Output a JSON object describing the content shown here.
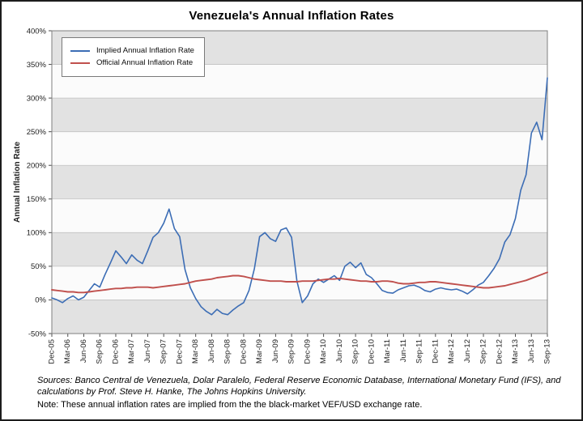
{
  "chart_data": {
    "type": "line",
    "title": "Venezuela's Annual Inflation Rates",
    "xlabel": "",
    "ylabel": "Annual Inflation Rate",
    "ylim": [
      -50,
      400
    ],
    "y_tick_step": 50,
    "y_tick_suffix": "%",
    "grid": true,
    "legend_position": "top-left",
    "style": {
      "band_dark": "#e2e2e2",
      "band_light": "#fbfbfb",
      "grid": "#c2c2c2",
      "plot_border": "#7f7f7f",
      "axis": "#4d4d4d"
    },
    "categories": [
      "Dec-05",
      "Jan-06",
      "Feb-06",
      "Mar-06",
      "Apr-06",
      "May-06",
      "Jun-06",
      "Jul-06",
      "Aug-06",
      "Sep-06",
      "Oct-06",
      "Nov-06",
      "Dec-06",
      "Jan-07",
      "Feb-07",
      "Mar-07",
      "Apr-07",
      "May-07",
      "Jun-07",
      "Jul-07",
      "Aug-07",
      "Sep-07",
      "Oct-07",
      "Nov-07",
      "Dec-07",
      "Jan-08",
      "Feb-08",
      "Mar-08",
      "Apr-08",
      "May-08",
      "Jun-08",
      "Jul-08",
      "Aug-08",
      "Sep-08",
      "Oct-08",
      "Nov-08",
      "Dec-08",
      "Jan-09",
      "Feb-09",
      "Mar-09",
      "Apr-09",
      "May-09",
      "Jun-09",
      "Jul-09",
      "Aug-09",
      "Sep-09",
      "Oct-09",
      "Nov-09",
      "Dec-09",
      "Jan-10",
      "Feb-10",
      "Mar-10",
      "Apr-10",
      "May-10",
      "Jun-10",
      "Jul-10",
      "Aug-10",
      "Sep-10",
      "Oct-10",
      "Nov-10",
      "Dec-10",
      "Jan-11",
      "Feb-11",
      "Mar-11",
      "Apr-11",
      "May-11",
      "Jun-11",
      "Jul-11",
      "Aug-11",
      "Sep-11",
      "Oct-11",
      "Nov-11",
      "Dec-11",
      "Jan-12",
      "Feb-12",
      "Mar-12",
      "Apr-12",
      "May-12",
      "Jun-12",
      "Jul-12",
      "Aug-12",
      "Sep-12",
      "Oct-12",
      "Nov-12",
      "Dec-12",
      "Jan-13",
      "Feb-13",
      "Mar-13",
      "Apr-13",
      "May-13",
      "Jun-13",
      "Jul-13",
      "Aug-13",
      "Sep-13"
    ],
    "x_tick_every": 3,
    "series": [
      {
        "name": "Implied Annual Inflation Rate",
        "color": "#3c6db5",
        "values": [
          3,
          0,
          -4,
          2,
          6,
          0,
          4,
          14,
          24,
          19,
          38,
          55,
          73,
          64,
          54,
          67,
          59,
          54,
          73,
          93,
          100,
          114,
          135,
          106,
          94,
          45,
          18,
          2,
          -10,
          -17,
          -22,
          -14,
          -20,
          -22,
          -15,
          -9,
          -4,
          14,
          46,
          94,
          100,
          91,
          87,
          104,
          107,
          93,
          28,
          -4,
          6,
          24,
          31,
          26,
          31,
          36,
          29,
          50,
          56,
          48,
          55,
          38,
          33,
          24,
          14,
          11,
          10,
          15,
          18,
          21,
          22,
          19,
          14,
          12,
          16,
          18,
          16,
          15,
          16,
          13,
          9,
          15,
          22,
          26,
          36,
          47,
          61,
          86,
          97,
          121,
          163,
          186,
          248,
          264,
          238,
          330
        ]
      },
      {
        "name": "Official Annual Inflation Rate",
        "color": "#c0504d",
        "values": [
          15,
          14,
          13,
          12,
          12,
          11,
          11,
          12,
          13,
          14,
          15,
          16,
          17,
          17,
          18,
          18,
          19,
          19,
          19,
          18,
          19,
          20,
          21,
          22,
          23,
          24,
          26,
          28,
          29,
          30,
          31,
          33,
          34,
          35,
          36,
          36,
          35,
          33,
          31,
          30,
          29,
          28,
          28,
          28,
          27,
          27,
          27,
          28,
          28,
          28,
          29,
          30,
          31,
          31,
          32,
          31,
          30,
          29,
          28,
          28,
          27,
          27,
          28,
          28,
          27,
          25,
          24,
          24,
          25,
          26,
          26,
          27,
          27,
          26,
          25,
          24,
          23,
          22,
          21,
          20,
          19,
          18,
          18,
          19,
          20,
          21,
          23,
          25,
          27,
          29,
          32,
          35,
          38,
          41
        ]
      }
    ]
  },
  "footer": {
    "sources": "Sources: Banco Central de Venezuela, Dolar Paralelo, Federal Reserve Economic Database, International Monetary Fund (IFS), and calculations by Prof. Steve H. Hanke, The Johns Hopkins University.",
    "note": "Note: These annual inflation rates are implied from the the black-market VEF/USD exchange rate."
  }
}
